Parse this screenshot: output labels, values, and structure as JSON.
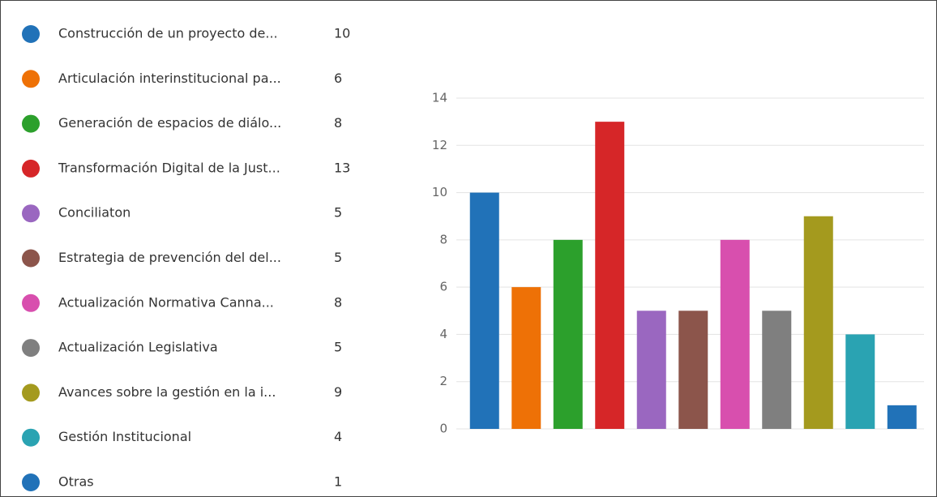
{
  "chart_data": {
    "type": "bar",
    "categories": [
      "Construcción de un proyecto de...",
      "Articulación interinstitucional pa...",
      "Generación de espacios de diálo...",
      "Transformación Digital de la Just...",
      "Conciliaton",
      "Estrategia de prevención del del...",
      "Actualización Normativa Canna...",
      "Actualización Legislativa",
      "Avances sobre la gestión en la  i...",
      "Gestión Institucional",
      "Otras"
    ],
    "values": [
      10,
      6,
      8,
      13,
      5,
      5,
      8,
      5,
      9,
      4,
      1
    ],
    "colors": [
      "#2172b8",
      "#ee7106",
      "#2ca02c",
      "#d62628",
      "#9a67c0",
      "#8c554b",
      "#d84fae",
      "#7f7f7f",
      "#a49a1e",
      "#2aa3b2",
      "#2172b8"
    ],
    "ylim": [
      0,
      14
    ],
    "yticks": [
      0,
      2,
      4,
      6,
      8,
      10,
      12,
      14
    ],
    "grid": true,
    "legend": "left"
  }
}
